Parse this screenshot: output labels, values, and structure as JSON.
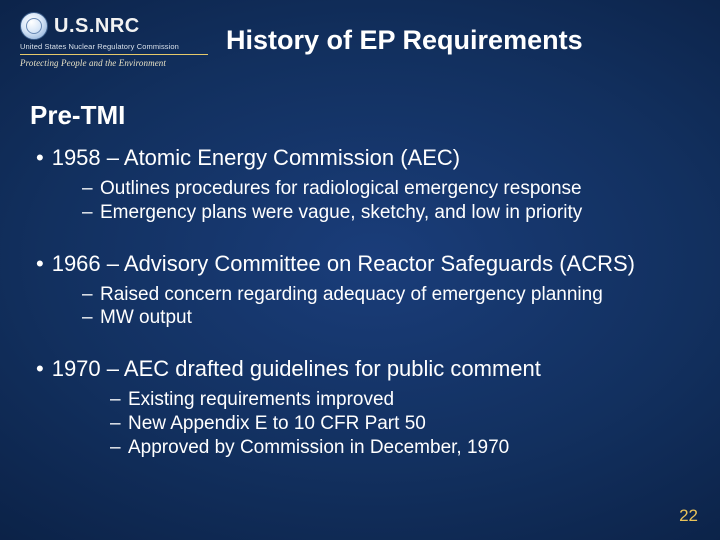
{
  "colors": {
    "bg_center": "#1a3d7a",
    "bg_edge": "#030a1c",
    "text": "#ffffff",
    "accent_gold": "#e5c96b",
    "page_num_color": "#e9c35a"
  },
  "logo": {
    "wordmark": "U.S.NRC",
    "subline": "United States Nuclear Regulatory Commission",
    "tagline": "Protecting People and the Environment"
  },
  "title": "History of EP Requirements",
  "subtitle": "Pre-TMI",
  "bullets": [
    {
      "text": "1958 – Atomic Energy Commission (AEC)",
      "subs": [
        "Outlines procedures for radiological emergency response",
        "Emergency plans were vague, sketchy, and low in priority"
      ],
      "indent": "normal"
    },
    {
      "text": "1966 – Advisory Committee on Reactor Safeguards (ACRS)",
      "subs": [
        "Raised concern regarding adequacy of emergency planning",
        "MW output"
      ],
      "indent": "normal"
    },
    {
      "text": "1970 – AEC drafted guidelines for public comment",
      "subs": [
        "Existing requirements improved",
        "New Appendix E to 10 CFR Part 50",
        "Approved by Commission in December, 1970"
      ],
      "indent": "more"
    }
  ],
  "page_number": "22"
}
